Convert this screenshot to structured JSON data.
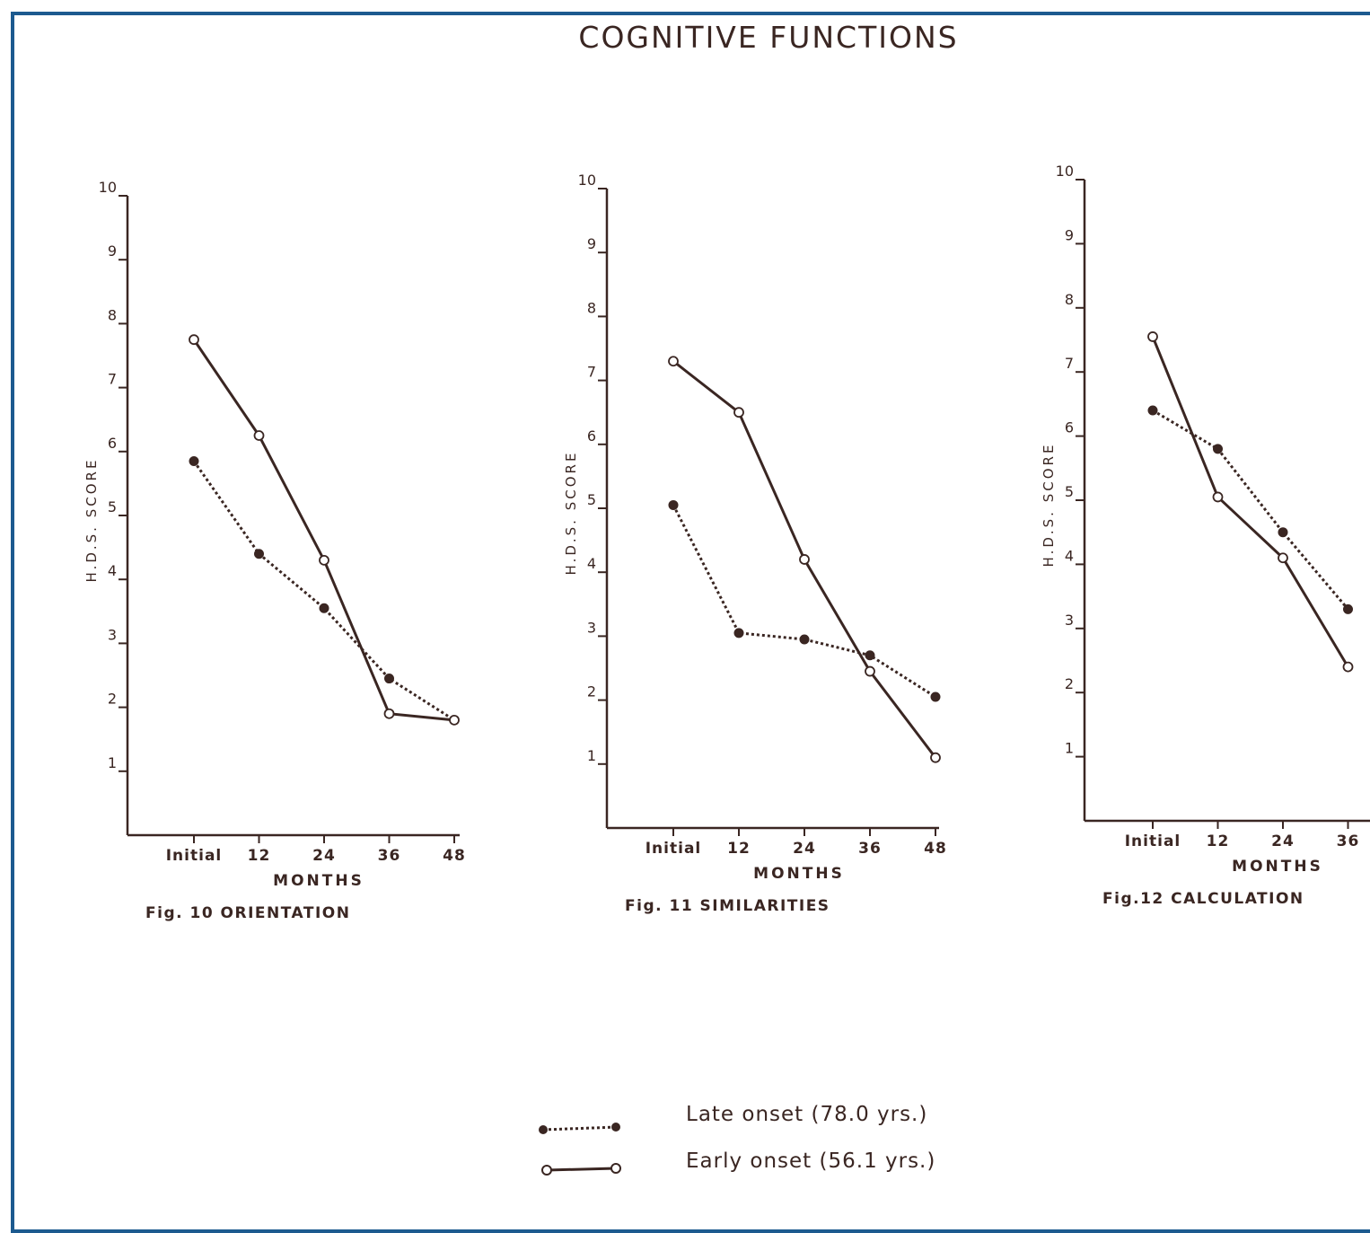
{
  "page_title": "COGNITIVE FUNCTIONS",
  "colors": {
    "ink": "#3a2622",
    "frame": "#1c5a8f"
  },
  "legend": [
    {
      "label": "Late onset",
      "detail": "(78.0 yrs.)",
      "style": "dotted-filled"
    },
    {
      "label": "Early onset",
      "detail": "(56.1 yrs.)",
      "style": "solid-open"
    }
  ],
  "chart_data": [
    {
      "type": "line",
      "title": "Fig. 10 ORIENTATION",
      "xlabel": "MONTHS",
      "ylabel": "H.D.S. SCORE",
      "categories": [
        "Initial",
        "12",
        "24",
        "36",
        "48"
      ],
      "yticks": [
        "1",
        "2",
        "3",
        "4",
        "5",
        "6",
        "7",
        "8",
        "9",
        "10"
      ],
      "ylim": [
        0,
        10
      ],
      "series": [
        {
          "name": "Late onset",
          "values": [
            5.85,
            4.4,
            3.55,
            2.45,
            1.8
          ]
        },
        {
          "name": "Early onset",
          "values": [
            7.75,
            6.25,
            4.3,
            1.9,
            1.8
          ]
        }
      ]
    },
    {
      "type": "line",
      "title": "Fig. 11 SIMILARITIES",
      "xlabel": "MONTHS",
      "ylabel": "H.D.S. SCORE",
      "categories": [
        "Initial",
        "12",
        "24",
        "36",
        "48"
      ],
      "yticks": [
        "1",
        "2",
        "3",
        "4",
        "5",
        "6",
        "7",
        "8",
        "9",
        "10"
      ],
      "ylim": [
        0,
        10
      ],
      "series": [
        {
          "name": "Late onset",
          "values": [
            5.05,
            3.05,
            2.95,
            2.7,
            2.05
          ]
        },
        {
          "name": "Early onset",
          "values": [
            7.3,
            6.5,
            4.2,
            2.45,
            1.1
          ]
        }
      ]
    },
    {
      "type": "line",
      "title": "Fig.12 CALCULATION",
      "xlabel": "MONTHS",
      "ylabel": "H.D.S. SCORE",
      "categories": [
        "Initial",
        "12",
        "24",
        "36"
      ],
      "yticks": [
        "1",
        "2",
        "3",
        "4",
        "5",
        "6",
        "7",
        "8",
        "9",
        "10"
      ],
      "ylim": [
        0,
        10
      ],
      "series": [
        {
          "name": "Late onset",
          "values": [
            6.4,
            5.8,
            4.5,
            3.3
          ]
        },
        {
          "name": "Early onset",
          "values": [
            7.55,
            5.05,
            4.1,
            2.4
          ]
        }
      ]
    }
  ]
}
